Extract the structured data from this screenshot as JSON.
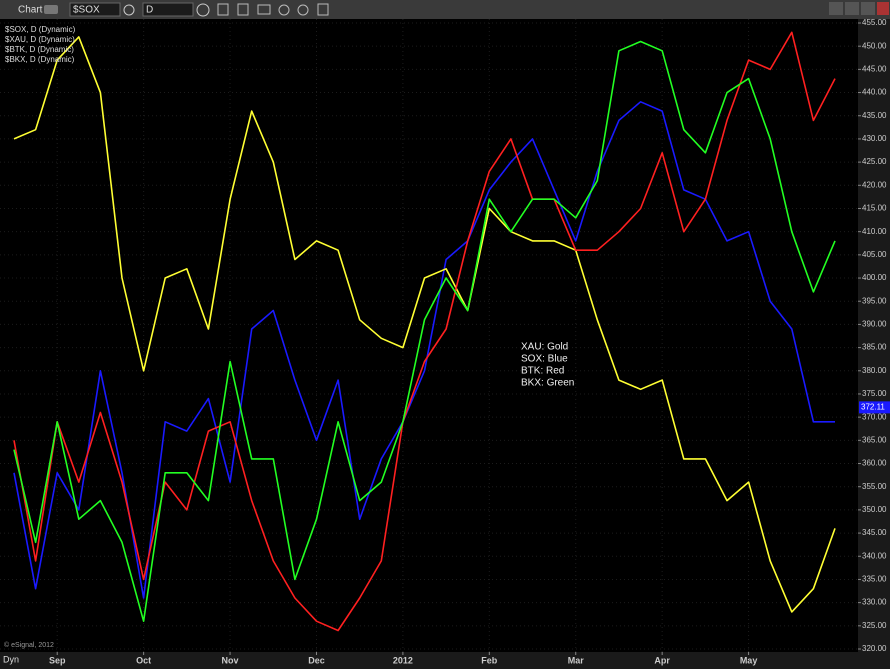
{
  "toolbar": {
    "title": "Chart",
    "symbol": "$SOX",
    "interval": "D"
  },
  "copyright": "© eSignal, 2012",
  "footer_label": "Dyn",
  "chart_data": {
    "type": "line",
    "categories": [
      null,
      null,
      "Sep",
      null,
      null,
      null,
      "Oct",
      null,
      null,
      null,
      "Nov",
      null,
      null,
      null,
      "Dec",
      null,
      null,
      null,
      "2012",
      null,
      null,
      null,
      "Feb",
      null,
      null,
      null,
      "Mar",
      null,
      null,
      null,
      "Apr",
      null,
      null,
      null,
      "May",
      null,
      null,
      null,
      null
    ],
    "series": [
      {
        "name": "$SOX, D (Dynamic)",
        "color": "#1a1aff",
        "values": [
          358,
          333,
          358,
          350,
          380,
          358,
          331,
          369,
          367,
          374,
          356,
          389,
          393,
          378,
          365,
          378,
          348,
          361,
          369,
          380,
          404,
          408,
          419,
          425,
          430,
          419,
          408,
          423,
          434,
          438,
          436,
          419,
          417,
          408,
          410,
          395,
          389,
          369,
          369
        ]
      },
      {
        "name": "$XAU, D (Dynamic)",
        "color": "#ffff33",
        "values": [
          430,
          432,
          447,
          452,
          440,
          400,
          380,
          400,
          402,
          389,
          417,
          436,
          425,
          404,
          408,
          406,
          391,
          387,
          385,
          400,
          402,
          393,
          415,
          410,
          408,
          408,
          406,
          391,
          378,
          376,
          378,
          361,
          361,
          352,
          356,
          339,
          328,
          333,
          346
        ]
      },
      {
        "name": "$BTK, D (Dynamic)",
        "color": "#ff2020",
        "values": [
          365,
          339,
          369,
          356,
          371,
          356,
          335,
          356,
          350,
          367,
          369,
          352,
          339,
          331,
          326,
          324,
          331,
          339,
          369,
          382,
          389,
          408,
          423,
          430,
          417,
          417,
          406,
          406,
          410,
          415,
          427,
          410,
          417,
          434,
          447,
          445,
          453,
          434,
          443
        ]
      },
      {
        "name": "$BKX, D (Dynamic)",
        "color": "#22ff22",
        "values": [
          363,
          343,
          369,
          348,
          352,
          343,
          326,
          358,
          358,
          352,
          382,
          361,
          361,
          335,
          348,
          369,
          352,
          356,
          369,
          391,
          400,
          393,
          417,
          410,
          417,
          417,
          413,
          421,
          449,
          451,
          449,
          432,
          427,
          440,
          443,
          430,
          410,
          397,
          408
        ]
      }
    ],
    "annotations": [
      "XAU:  Gold",
      "SOX:  Blue",
      "BTK:  Red",
      "BKX:  Green"
    ],
    "price_marker": 372.11,
    "ylim": [
      320,
      455
    ],
    "yticks": [
      {
        "value": 320,
        "label": "320.00"
      },
      {
        "value": 325,
        "label": "325.00"
      },
      {
        "value": 330,
        "label": "330.00"
      },
      {
        "value": 335,
        "label": "335.00"
      },
      {
        "value": 340,
        "label": "340.00"
      },
      {
        "value": 345,
        "label": "345.00"
      },
      {
        "value": 350,
        "label": "350.00"
      },
      {
        "value": 355,
        "label": "355.00"
      },
      {
        "value": 360,
        "label": "360.00"
      },
      {
        "value": 365,
        "label": "365.00"
      },
      {
        "value": 370,
        "label": "370.00"
      },
      {
        "value": 375,
        "label": "375.00"
      },
      {
        "value": 380,
        "label": "380.00"
      },
      {
        "value": 385,
        "label": "385.00"
      },
      {
        "value": 390,
        "label": "390.00"
      },
      {
        "value": 395,
        "label": "395.00"
      },
      {
        "value": 400,
        "label": "400.00"
      },
      {
        "value": 405,
        "label": "405.00"
      },
      {
        "value": 410,
        "label": "410.00"
      },
      {
        "value": 415,
        "label": "415.00"
      },
      {
        "value": 420,
        "label": "420.00"
      },
      {
        "value": 425,
        "label": "425.00"
      },
      {
        "value": 430,
        "label": "430.00"
      },
      {
        "value": 435,
        "label": "435.00"
      },
      {
        "value": 440,
        "label": "440.00"
      },
      {
        "value": 445,
        "label": "445.00"
      },
      {
        "value": 450,
        "label": "450.00"
      },
      {
        "value": 455,
        "label": "455.00"
      }
    ],
    "grid": true
  }
}
